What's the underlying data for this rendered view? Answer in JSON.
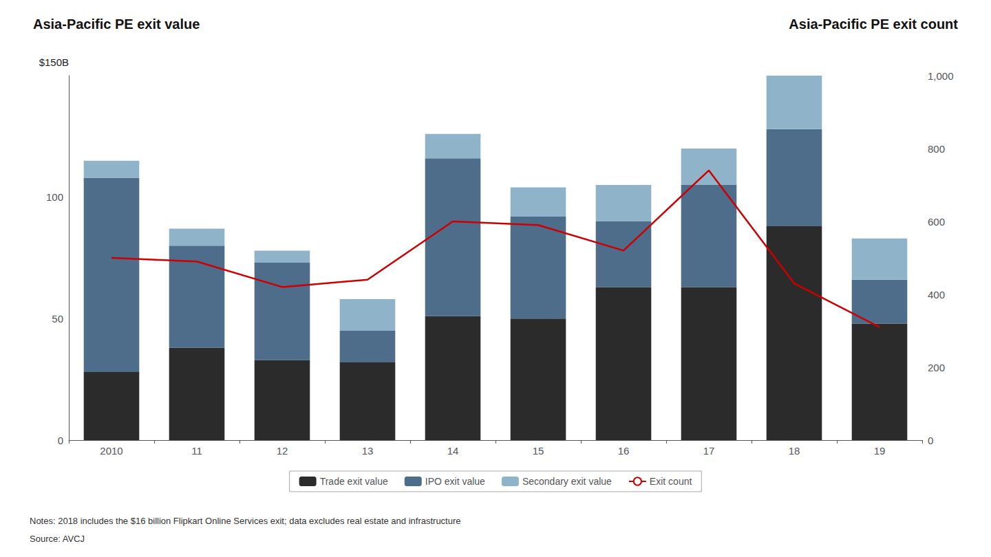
{
  "chart_data": {
    "type": "bar",
    "title": "Asia-Pacific PE exit value",
    "title_right": "Asia-Pacific PE exit count",
    "ylabel": "$150B",
    "categories": [
      "2010",
      "11",
      "12",
      "13",
      "14",
      "15",
      "16",
      "17",
      "18",
      "19"
    ],
    "stacked": true,
    "series": [
      {
        "name": "Trade exit value",
        "type": "bar",
        "color": "#2b2b2b",
        "values": [
          28,
          38,
          33,
          32,
          51,
          50,
          63,
          63,
          88,
          48
        ]
      },
      {
        "name": "IPO exit value",
        "type": "bar",
        "color": "#4d6d8a",
        "values": [
          80,
          42,
          40,
          13,
          65,
          42,
          27,
          42,
          40,
          18
        ]
      },
      {
        "name": "Secondary exit value",
        "type": "bar",
        "color": "#8fb3c9",
        "values": [
          7,
          7,
          5,
          13,
          10,
          12,
          15,
          15,
          22,
          17
        ]
      },
      {
        "name": "Exit count",
        "type": "line",
        "axis": "y2",
        "color": "#cc0000",
        "values": [
          500,
          490,
          420,
          440,
          600,
          590,
          520,
          740,
          430,
          310
        ]
      }
    ],
    "ylim": [
      0,
      150
    ],
    "yticks": [
      0,
      50,
      100
    ],
    "y2lim": [
      0,
      1000
    ],
    "y2ticks": [
      0,
      200,
      400,
      600,
      800,
      {
        "value": 1000,
        "label": "1,000"
      }
    ],
    "grid": false,
    "legend": "bottom",
    "annotations": [
      "Notes: 2018 includes the $16 billion Flipkart Online Services exit; data excludes real estate and infrastructure",
      "Source: AVCJ"
    ]
  }
}
